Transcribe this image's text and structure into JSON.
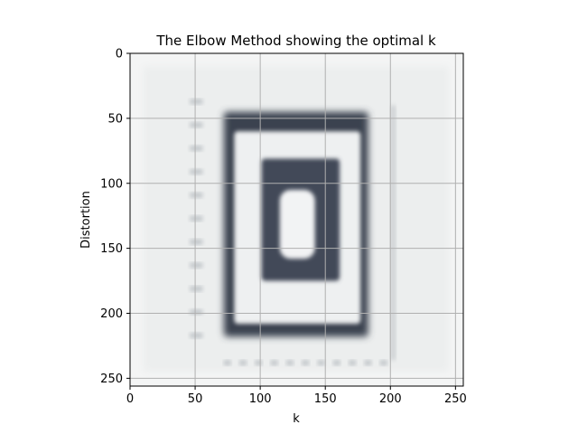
{
  "chart_data": {
    "type": "heatmap",
    "title": "The Elbow Method showing the optimal k",
    "xlabel": "k",
    "ylabel": "Distortion",
    "xlim": [
      0,
      256
    ],
    "ylim": [
      256,
      0
    ],
    "grid": true,
    "x_ticks": [
      {
        "value": 0,
        "label": "0"
      },
      {
        "value": 50,
        "label": "50"
      },
      {
        "value": 100,
        "label": "100"
      },
      {
        "value": 150,
        "label": "150"
      },
      {
        "value": 200,
        "label": "200"
      },
      {
        "value": 250,
        "label": "250"
      }
    ],
    "y_ticks": [
      {
        "value": 0,
        "label": "0"
      },
      {
        "value": 50,
        "label": "50"
      },
      {
        "value": 100,
        "label": "100"
      },
      {
        "value": 150,
        "label": "150"
      },
      {
        "value": 200,
        "label": "200"
      },
      {
        "value": 250,
        "label": "250"
      }
    ],
    "image_regions": [
      {
        "name": "outer-frame",
        "x": [
          72,
          183
        ],
        "y": [
          45,
          218
        ],
        "color": "#3a4250"
      },
      {
        "name": "frame-inner-gap",
        "x": [
          80,
          177
        ],
        "y": [
          60,
          208
        ],
        "color": "#eef0f1"
      },
      {
        "name": "inner-block",
        "x": [
          101,
          161
        ],
        "y": [
          81,
          175
        ],
        "color": "#434a59"
      },
      {
        "name": "center-hole",
        "x": [
          115,
          142
        ],
        "y": [
          105,
          158
        ],
        "color": "#f2f3f4"
      }
    ],
    "colors": {
      "background": "#eceeee",
      "dark": "#3e4553",
      "light": "#f4f5f5",
      "grid": "#b0b0b0"
    }
  }
}
